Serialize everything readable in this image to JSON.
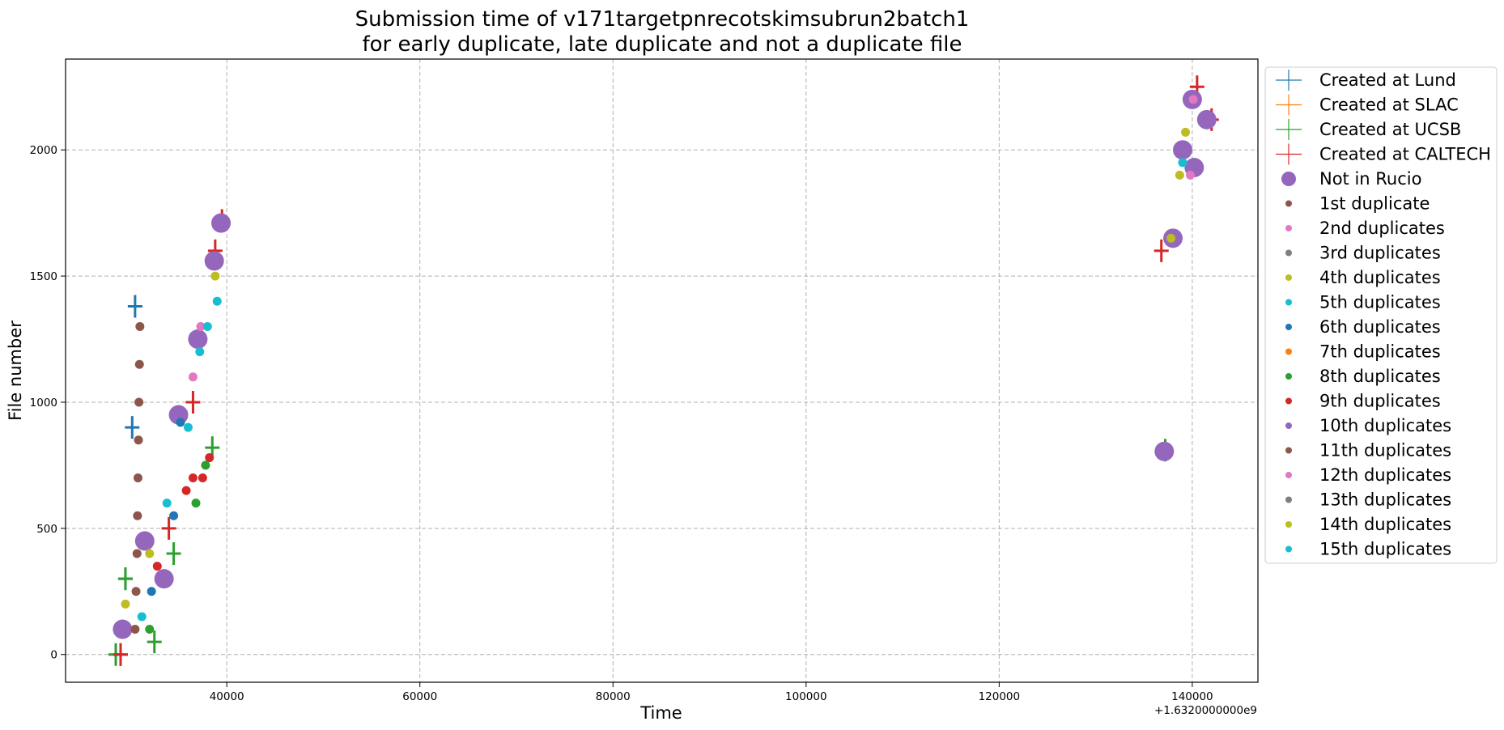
{
  "chart_data": {
    "type": "scatter",
    "title_line1": "Submission time of v171targetpnrecotskimsubrun2batch1",
    "title_line2": "for early duplicate, late duplicate and not a duplicate file",
    "xlabel": "Time",
    "ylabel": "File number",
    "x_offset_text": "+1.6320000000e9",
    "xlim": [
      23300,
      146800
    ],
    "ylim": [
      -110,
      2360
    ],
    "x_ticks": [
      40000,
      60000,
      80000,
      100000,
      120000,
      140000
    ],
    "x_tick_labels": [
      "40000",
      "60000",
      "80000",
      "100000",
      "120000",
      "140000"
    ],
    "y_ticks": [
      0,
      500,
      1000,
      1500,
      2000
    ],
    "y_tick_labels": [
      "0",
      "500",
      "1000",
      "1500",
      "2000"
    ],
    "grid": true,
    "legend_position": "outside-right",
    "legend": [
      {
        "label": "Created at Lund",
        "marker": "plus",
        "color": "#1f77b4"
      },
      {
        "label": "Created at SLAC",
        "marker": "plus",
        "color": "#ff7f0e"
      },
      {
        "label": "Created at UCSB",
        "marker": "plus",
        "color": "#2ca02c"
      },
      {
        "label": "Created at CALTECH",
        "marker": "plus",
        "color": "#d62728"
      },
      {
        "label": "Not in Rucio",
        "marker": "big-dot",
        "color": "#9467bd"
      },
      {
        "label": "1st duplicate",
        "marker": "dot",
        "color": "#8c564b"
      },
      {
        "label": "2nd duplicates",
        "marker": "dot",
        "color": "#e377c2"
      },
      {
        "label": "3rd duplicates",
        "marker": "dot",
        "color": "#7f7f7f"
      },
      {
        "label": "4th duplicates",
        "marker": "dot",
        "color": "#bcbd22"
      },
      {
        "label": "5th duplicates",
        "marker": "dot",
        "color": "#17becf"
      },
      {
        "label": "6th duplicates",
        "marker": "dot",
        "color": "#1f77b4"
      },
      {
        "label": "7th duplicates",
        "marker": "dot",
        "color": "#ff7f0e"
      },
      {
        "label": "8th duplicates",
        "marker": "dot",
        "color": "#2ca02c"
      },
      {
        "label": "9th duplicates",
        "marker": "dot",
        "color": "#d62728"
      },
      {
        "label": "10th duplicates",
        "marker": "dot",
        "color": "#9467bd"
      },
      {
        "label": "11th duplicates",
        "marker": "dot",
        "color": "#8c564b"
      },
      {
        "label": "12th duplicates",
        "marker": "dot",
        "color": "#e377c2"
      },
      {
        "label": "13th duplicates",
        "marker": "dot",
        "color": "#7f7f7f"
      },
      {
        "label": "14th duplicates",
        "marker": "dot",
        "color": "#bcbd22"
      },
      {
        "label": "15th duplicates",
        "marker": "dot",
        "color": "#17becf"
      }
    ],
    "series": [
      {
        "name": "Created at Lund",
        "marker": "plus",
        "color": "#1f77b4",
        "points": [
          [
            29000,
            0
          ],
          [
            30500,
            1380
          ],
          [
            29500,
            300
          ],
          [
            30200,
            900
          ]
        ]
      },
      {
        "name": "Created at UCSB",
        "marker": "plus",
        "color": "#2ca02c",
        "points": [
          [
            28500,
            0
          ],
          [
            29500,
            300
          ],
          [
            32500,
            50
          ],
          [
            34500,
            400
          ],
          [
            38500,
            820
          ],
          [
            137200,
            810
          ]
        ]
      },
      {
        "name": "Created at CALTECH",
        "marker": "plus",
        "color": "#d62728",
        "points": [
          [
            29000,
            0
          ],
          [
            34000,
            500
          ],
          [
            36500,
            1000
          ],
          [
            38800,
            1600
          ],
          [
            39500,
            1720
          ],
          [
            136800,
            1600
          ],
          [
            140500,
            2250
          ],
          [
            142000,
            2120
          ]
        ]
      },
      {
        "name": "Not in Rucio",
        "marker": "big-dot",
        "color": "#9467bd",
        "points": [
          [
            29200,
            100
          ],
          [
            31500,
            450
          ],
          [
            33500,
            300
          ],
          [
            35000,
            950
          ],
          [
            37000,
            1250
          ],
          [
            38700,
            1560
          ],
          [
            39400,
            1710
          ],
          [
            137100,
            805
          ],
          [
            138000,
            1650
          ],
          [
            139000,
            2000
          ],
          [
            140000,
            2200
          ],
          [
            141500,
            2120
          ],
          [
            140200,
            1930
          ]
        ]
      },
      {
        "name": "1st duplicate",
        "marker": "dot",
        "color": "#8c564b",
        "points": [
          [
            30500,
            100
          ],
          [
            30700,
            400
          ],
          [
            30800,
            700
          ],
          [
            30900,
            1000
          ],
          [
            31000,
            1300
          ],
          [
            30600,
            250
          ],
          [
            30750,
            550
          ],
          [
            30850,
            850
          ],
          [
            30950,
            1150
          ]
        ]
      },
      {
        "name": "2nd duplicates",
        "marker": "dot",
        "color": "#e377c2",
        "points": [
          [
            36500,
            1100
          ],
          [
            37300,
            1300
          ],
          [
            139800,
            1900
          ],
          [
            140100,
            2200
          ]
        ]
      },
      {
        "name": "4th duplicates",
        "marker": "dot",
        "color": "#bcbd22",
        "points": [
          [
            29500,
            200
          ],
          [
            32000,
            400
          ],
          [
            38800,
            1500
          ],
          [
            137800,
            1650
          ],
          [
            138700,
            1900
          ],
          [
            139300,
            2070
          ]
        ]
      },
      {
        "name": "5th duplicates",
        "marker": "dot",
        "color": "#17becf",
        "points": [
          [
            31200,
            150
          ],
          [
            33800,
            600
          ],
          [
            36000,
            900
          ],
          [
            37200,
            1200
          ],
          [
            38000,
            1300
          ],
          [
            39000,
            1400
          ],
          [
            139000,
            1950
          ]
        ]
      },
      {
        "name": "6th duplicates",
        "marker": "dot",
        "color": "#1f77b4",
        "points": [
          [
            32200,
            250
          ],
          [
            34500,
            550
          ],
          [
            35200,
            920
          ]
        ]
      },
      {
        "name": "9th duplicates",
        "marker": "dot",
        "color": "#d62728",
        "points": [
          [
            32800,
            350
          ],
          [
            35800,
            650
          ],
          [
            36500,
            700
          ],
          [
            37500,
            700
          ],
          [
            38200,
            780
          ]
        ]
      },
      {
        "name": "8th duplicates",
        "marker": "dot",
        "color": "#2ca02c",
        "points": [
          [
            32000,
            100
          ],
          [
            36800,
            600
          ],
          [
            37800,
            750
          ]
        ]
      }
    ]
  }
}
